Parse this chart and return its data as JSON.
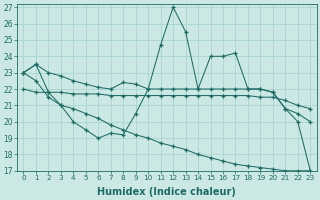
{
  "xlabel": "Humidex (Indice chaleur)",
  "xlim": [
    -0.5,
    23.5
  ],
  "ylim": [
    17,
    27.2
  ],
  "yticks": [
    17,
    18,
    19,
    20,
    21,
    22,
    23,
    24,
    25,
    26,
    27
  ],
  "xticks": [
    0,
    1,
    2,
    3,
    4,
    5,
    6,
    7,
    8,
    9,
    10,
    11,
    12,
    13,
    14,
    15,
    16,
    17,
    18,
    19,
    20,
    21,
    22,
    23
  ],
  "bg_color": "#cce8e5",
  "line_color": "#1e6b65",
  "grid_color": "#a8d5d0",
  "line1_y": [
    23.0,
    23.5,
    23.0,
    22.8,
    22.5,
    22.3,
    22.1,
    22.0,
    22.4,
    22.3,
    22.0,
    22.0,
    22.0,
    22.0,
    22.0,
    22.0,
    22.0,
    22.0,
    22.0,
    22.0,
    21.8,
    20.8,
    20.5,
    20.0
  ],
  "line2_y": [
    23.0,
    23.5,
    21.8,
    21.0,
    20.0,
    19.5,
    19.0,
    19.3,
    19.2,
    20.5,
    22.0,
    24.7,
    27.0,
    25.5,
    22.0,
    24.0,
    24.0,
    24.2,
    22.0,
    22.0,
    21.8,
    20.8,
    20.0,
    17.0
  ],
  "line3_y": [
    22.0,
    21.8,
    21.8,
    21.8,
    21.7,
    21.7,
    21.7,
    21.6,
    21.6,
    21.6,
    21.6,
    21.6,
    21.6,
    21.6,
    21.6,
    21.6,
    21.6,
    21.6,
    21.6,
    21.5,
    21.5,
    21.3,
    21.0,
    20.8
  ],
  "line4_y": [
    23.0,
    22.5,
    21.5,
    21.0,
    20.8,
    20.5,
    20.2,
    19.8,
    19.5,
    19.2,
    19.0,
    18.7,
    18.5,
    18.3,
    18.0,
    17.8,
    17.6,
    17.4,
    17.3,
    17.2,
    17.1,
    17.0,
    17.0,
    17.0
  ]
}
